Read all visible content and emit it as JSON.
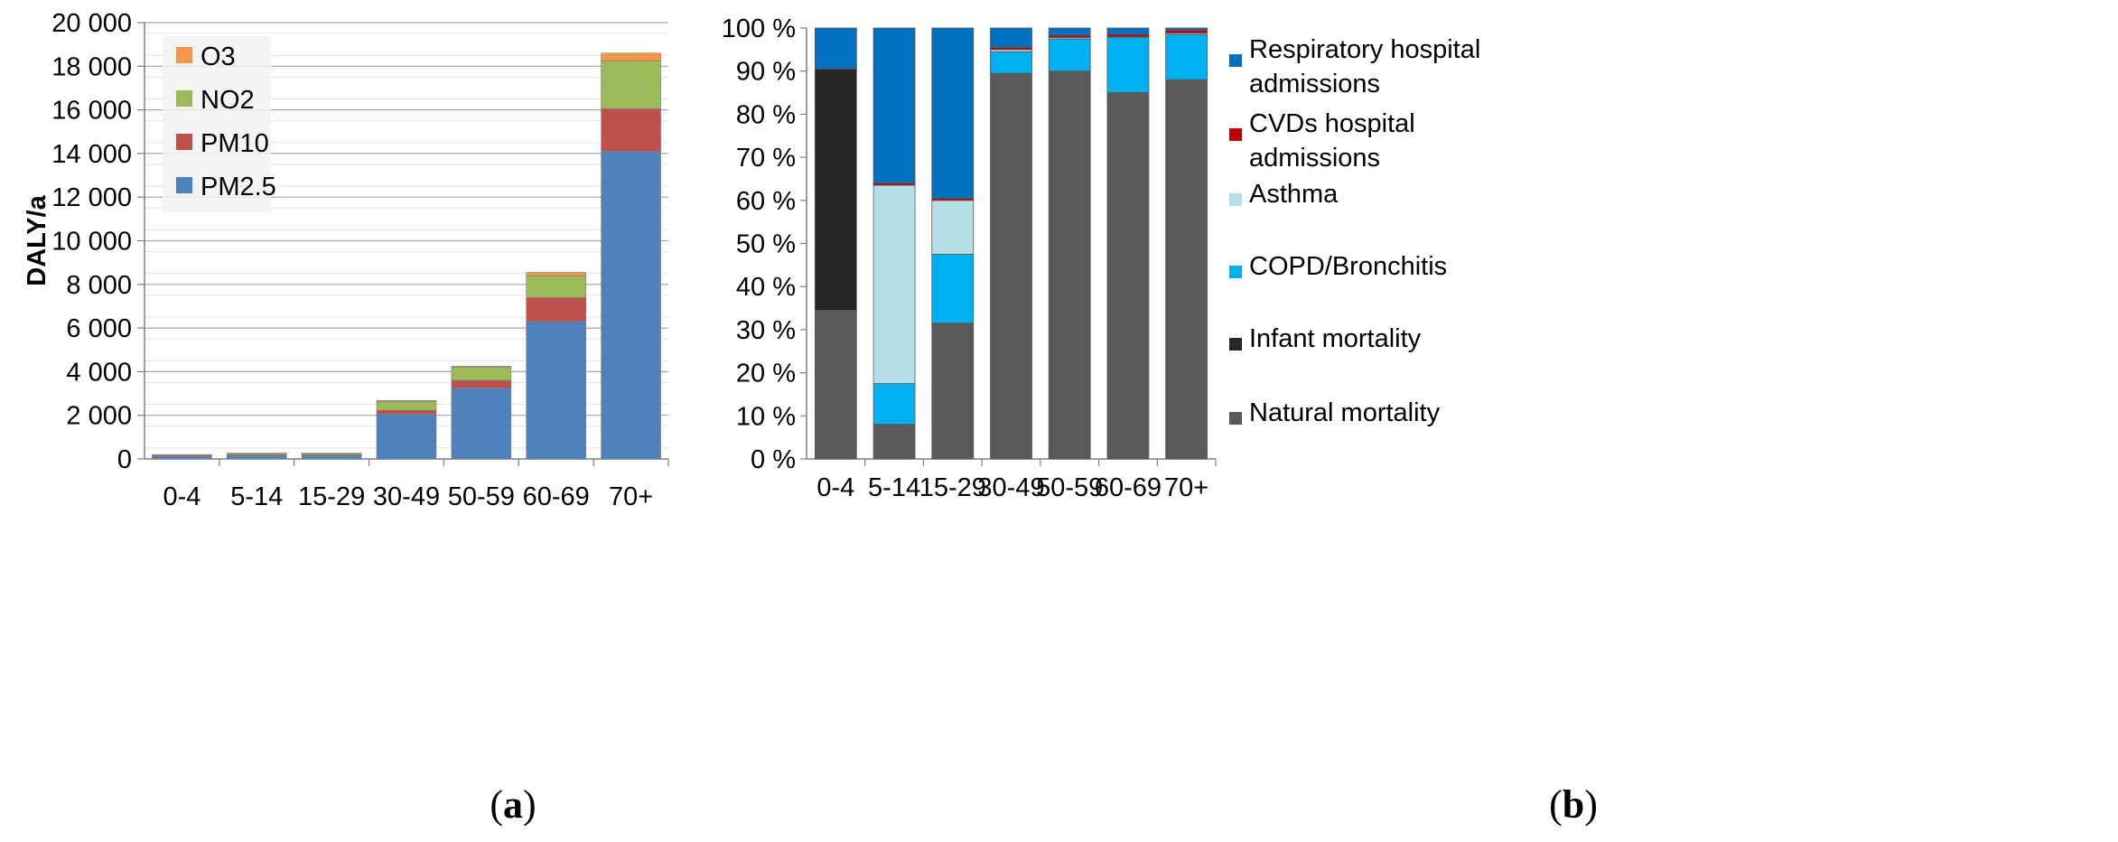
{
  "chart_data": [
    {
      "type": "bar",
      "stacked": true,
      "panel": "a",
      "ylabel": "DALY/a",
      "ylim": [
        0,
        20000
      ],
      "y_ticks": [
        "0",
        "2 000",
        "4 000",
        "6 000",
        "8 000",
        "10 000",
        "12 000",
        "14 000",
        "16 000",
        "18 000",
        "20 000"
      ],
      "grid": true,
      "legend_position": "top-left",
      "categories": [
        "0-4",
        "5-14",
        "15-29",
        "30-49",
        "50-59",
        "60-69",
        "70+"
      ],
      "series": [
        {
          "name": "PM2.5",
          "color": "#4f81bd",
          "values": [
            120,
            150,
            150,
            2050,
            3250,
            6300,
            14100
          ]
        },
        {
          "name": "PM10",
          "color": "#c0504d",
          "values": [
            40,
            50,
            50,
            180,
            350,
            1100,
            1950
          ]
        },
        {
          "name": "NO2",
          "color": "#9bbb59",
          "values": [
            30,
            60,
            60,
            400,
            600,
            1000,
            2200
          ]
        },
        {
          "name": "O3",
          "color": "#f79646",
          "values": [
            10,
            10,
            10,
            50,
            50,
            150,
            350
          ]
        }
      ],
      "legend_order": [
        "O3",
        "NO2",
        "PM10",
        "PM2.5"
      ]
    },
    {
      "type": "bar",
      "stacked": true,
      "percent": true,
      "panel": "b",
      "ylim": [
        0,
        100
      ],
      "y_ticks": [
        "0 %",
        "10 %",
        "20 %",
        "30 %",
        "40 %",
        "50 %",
        "60 %",
        "70 %",
        "80 %",
        "90 %",
        "100 %"
      ],
      "grid": false,
      "legend_position": "right",
      "categories": [
        "0-4",
        "5-14",
        "15-29",
        "30-49",
        "50-59",
        "60-69",
        "70+"
      ],
      "series": [
        {
          "name": "Natural mortality",
          "color": "#595959",
          "values": [
            34.5,
            8,
            31.5,
            89.5,
            90,
            85,
            88
          ]
        },
        {
          "name": "Infant mortality",
          "color": "#262626",
          "values": [
            56,
            0,
            0,
            0,
            0,
            0,
            0
          ]
        },
        {
          "name": "COPD/Bronchitis",
          "color": "#00b0f0",
          "values": [
            0,
            9.5,
            16,
            5,
            7.5,
            12.8,
            10.5
          ]
        },
        {
          "name": "Asthma",
          "color": "#b7dee8",
          "values": [
            0,
            46,
            12.5,
            0.5,
            0.3,
            0.2,
            0.3
          ]
        },
        {
          "name": "CVDs hospital admissions",
          "color": "#c00000",
          "values": [
            0,
            0.5,
            0.5,
            0.5,
            0.5,
            0.5,
            0.7
          ]
        },
        {
          "name": "Respiratory hospital admissions",
          "color": "#0070c0",
          "values": [
            9.5,
            36,
            39.5,
            4.5,
            1.7,
            1.5,
            0.5
          ]
        }
      ],
      "legend_order": [
        {
          "series": "Respiratory hospital admissions",
          "lines": [
            "Respiratory hospital",
            "admissions"
          ]
        },
        {
          "series": "CVDs hospital admissions",
          "lines": [
            "CVDs hospital",
            "admissions"
          ]
        },
        {
          "series": "Asthma",
          "lines": [
            "Asthma"
          ]
        },
        {
          "series": "COPD/Bronchitis",
          "lines": [
            "COPD/Bronchitis"
          ]
        },
        {
          "series": "Infant mortality",
          "lines": [
            "Infant mortality"
          ]
        },
        {
          "series": "Natural mortality",
          "lines": [
            "Natural mortality"
          ]
        }
      ]
    }
  ],
  "captions": {
    "a": "a",
    "b": "b"
  }
}
